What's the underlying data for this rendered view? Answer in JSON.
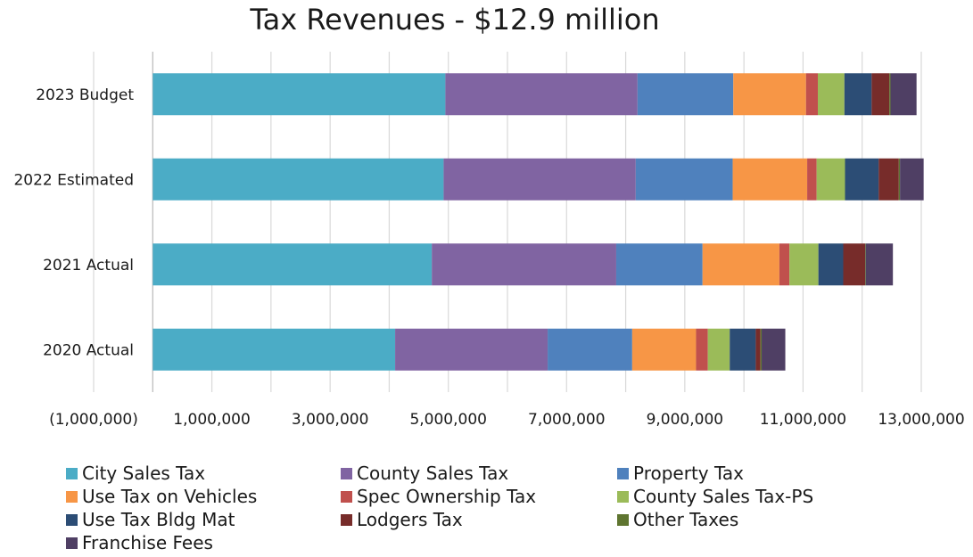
{
  "chart_data": {
    "type": "bar",
    "orientation": "horizontal",
    "stacked": true,
    "title": "Tax Revenues - $12.9 million",
    "categories": [
      "2023 Budget",
      "2022 Estimated",
      "2021 Actual",
      "2020 Actual"
    ],
    "xlim": [
      -1000000,
      13000000
    ],
    "x_ticks": [
      -1000000,
      1000000,
      3000000,
      5000000,
      7000000,
      9000000,
      11000000,
      13000000
    ],
    "x_tick_labels": [
      "(1,000,000)",
      "1,000,000",
      "3,000,000",
      "5,000,000",
      "7,000,000",
      "9,000,000",
      "11,000,000",
      "13,000,000"
    ],
    "grid": true,
    "legend_position": "bottom",
    "series": [
      {
        "name": "City Sales Tax",
        "color": "#4BACC6",
        "values": [
          4950000,
          4920000,
          4720000,
          4100000
        ]
      },
      {
        "name": "County Sales Tax",
        "color": "#8064A2",
        "values": [
          3250000,
          3250000,
          3120000,
          2580000
        ]
      },
      {
        "name": "Property Tax",
        "color": "#4F81BD",
        "values": [
          1620000,
          1640000,
          1460000,
          1430000
        ]
      },
      {
        "name": "Use Tax on Vehicles",
        "color": "#F79646",
        "values": [
          1230000,
          1260000,
          1300000,
          1080000
        ]
      },
      {
        "name": "Spec Ownership Tax",
        "color": "#C0504D",
        "values": [
          200000,
          160000,
          170000,
          200000
        ]
      },
      {
        "name": "County Sales Tax-PS",
        "color": "#9BBB59",
        "values": [
          450000,
          480000,
          490000,
          370000
        ]
      },
      {
        "name": "Use Tax Bldg Mat",
        "color": "#2C4D75",
        "values": [
          460000,
          570000,
          420000,
          440000
        ]
      },
      {
        "name": "Lodgers Tax",
        "color": "#772C2A",
        "values": [
          300000,
          340000,
          370000,
          80000
        ]
      },
      {
        "name": "Other Taxes",
        "color": "#5F7530",
        "values": [
          20000,
          20000,
          10000,
          20000
        ]
      },
      {
        "name": "Franchise Fees",
        "color": "#4F3F64",
        "values": [
          440000,
          400000,
          460000,
          400000
        ]
      }
    ]
  }
}
